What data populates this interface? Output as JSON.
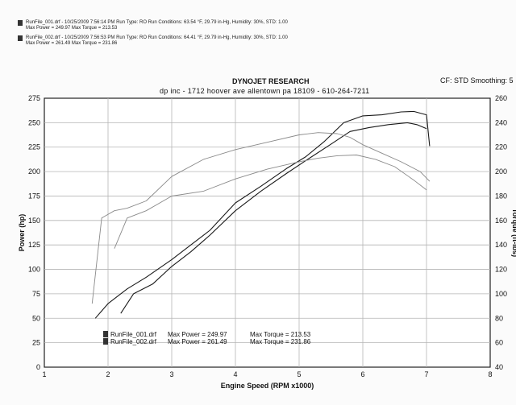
{
  "header": {
    "run1_line1": "RunFile_001.drf - 10/25/2009 7:56:14 PM  Run Type: RO  Run Conditions: 63.54 °F, 29.79 in-Hg,  Humidity:  30%, STD: 1.00",
    "run1_line2": "Max Power = 249.97  Max Torque = 213.53",
    "run2_line1": "RunFile_002.drf - 10/25/2009 7:56:53 PM  Run Type: RO  Run Conditions: 64.41 °F, 29.79 in-Hg,  Humidity:  30%, STD: 1.00",
    "run2_line2": "Max Power = 261.49  Max Torque = 231.86"
  },
  "title": "DYNOJET RESEARCH",
  "subtitle": "dp inc - 1712 hoover ave allentown pa 18109 - 610-264-7211",
  "correction": "CF: STD  Smoothing: 5",
  "chart_data": {
    "type": "line",
    "xlabel": "Engine Speed (RPM x1000)",
    "ylabel_left": "Power (hp)",
    "ylabel_right": "Torque (ft-lbs)",
    "xlim": [
      1,
      8
    ],
    "ylim_left": [
      0,
      275
    ],
    "ylim_right": [
      40,
      260
    ],
    "x_ticks": [
      "1",
      "2",
      "3",
      "4",
      "5",
      "6",
      "7",
      "8"
    ],
    "y_ticks_left": [
      "0",
      "25",
      "50",
      "75",
      "100",
      "125",
      "150",
      "175",
      "200",
      "225",
      "250",
      "275"
    ],
    "y_ticks_right": [
      "40",
      "60",
      "80",
      "100",
      "120",
      "140",
      "160",
      "180",
      "200",
      "220",
      "240",
      "260"
    ],
    "grid": true,
    "legend": [
      {
        "file": "RunFile_001.drf",
        "text": "Max Power = 249.97",
        "torque": "Max Torque = 213.53"
      },
      {
        "file": "RunFile_002.drf",
        "text": "Max Power = 261.49",
        "torque": "Max Torque = 231.86"
      }
    ],
    "series": [
      {
        "name": "RunFile_001.drf",
        "measure": "power",
        "axis": "left",
        "color": "#1a1a1a",
        "x": [
          2.2,
          2.4,
          2.7,
          3.0,
          3.3,
          3.6,
          4.0,
          4.4,
          4.8,
          5.1,
          5.5,
          5.8,
          6.1,
          6.4,
          6.7,
          6.85,
          7.0
        ],
        "y": [
          55,
          75,
          85,
          103,
          118,
          135,
          160,
          180,
          198,
          211,
          228,
          241,
          245,
          248,
          249.97,
          248,
          244
        ]
      },
      {
        "name": "RunFile_002.drf",
        "measure": "power",
        "axis": "left",
        "color": "#1a1a1a",
        "x": [
          1.8,
          2.0,
          2.3,
          2.6,
          3.0,
          3.3,
          3.6,
          4.0,
          4.4,
          4.8,
          5.1,
          5.4,
          5.7,
          6.0,
          6.3,
          6.6,
          6.8,
          7.0,
          7.05
        ],
        "y": [
          50,
          65,
          80,
          92,
          110,
          125,
          140,
          168,
          185,
          203,
          215,
          231,
          250,
          257,
          258,
          261,
          261.49,
          258,
          226
        ]
      },
      {
        "name": "RunFile_001.drf",
        "measure": "torque",
        "axis": "right",
        "color": "#8a8a8a",
        "x": [
          2.1,
          2.3,
          2.6,
          3.0,
          3.5,
          4.0,
          4.5,
          5.0,
          5.3,
          5.6,
          5.9,
          6.2,
          6.5,
          6.8,
          7.0
        ],
        "y": [
          137,
          162,
          168,
          180,
          184,
          194,
          202,
          208,
          211,
          213,
          213.53,
          210,
          204,
          193,
          185
        ]
      },
      {
        "name": "RunFile_002.drf",
        "measure": "torque",
        "axis": "right",
        "color": "#8a8a8a",
        "x": [
          1.75,
          1.9,
          2.1,
          2.3,
          2.6,
          3.0,
          3.5,
          4.0,
          4.5,
          5.0,
          5.3,
          5.6,
          5.8,
          6.0,
          6.3,
          6.6,
          6.9,
          7.05
        ],
        "y": [
          92,
          162,
          168,
          170,
          176,
          196,
          210,
          218,
          224,
          230,
          231.86,
          231,
          228,
          222,
          215,
          208,
          200,
          192
        ]
      }
    ]
  }
}
